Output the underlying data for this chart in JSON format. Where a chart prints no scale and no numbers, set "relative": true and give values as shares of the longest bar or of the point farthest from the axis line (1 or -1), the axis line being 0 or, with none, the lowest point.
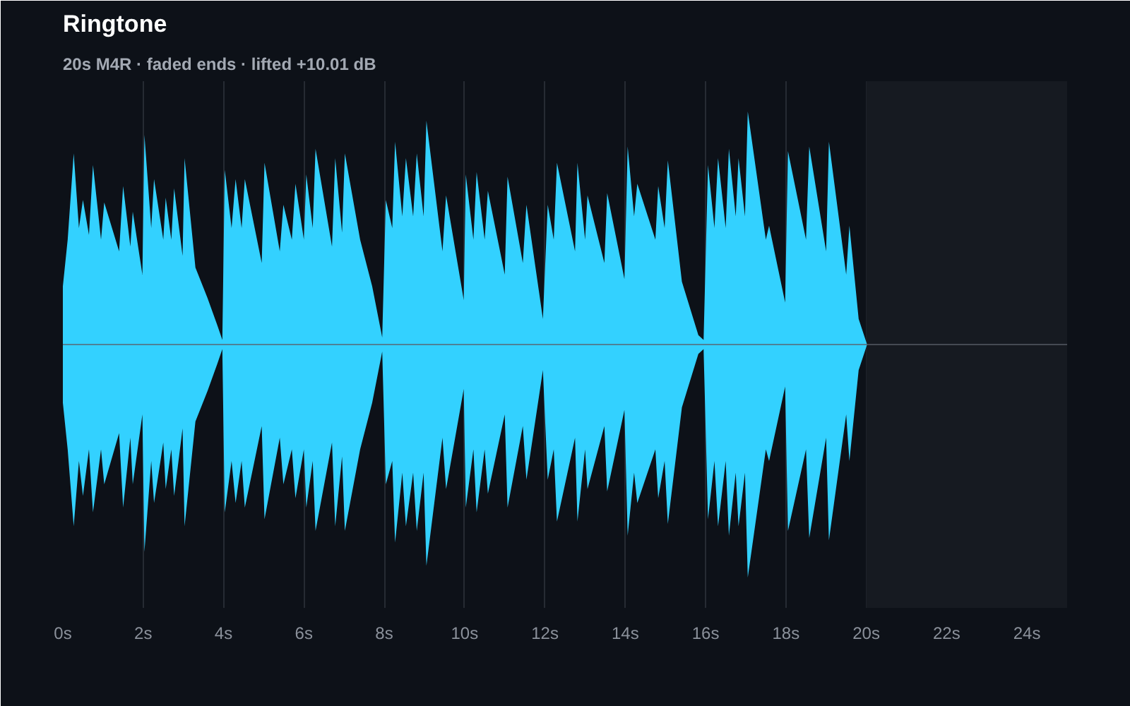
{
  "chart_data": {
    "type": "area",
    "title": "Ringtone",
    "subtitle": "20s M4R · faded ends · lifted +10.01 dB",
    "relative": true,
    "x": [
      0,
      0.12,
      0.27,
      0.4,
      0.5,
      0.65,
      0.75,
      0.95,
      1.03,
      1.4,
      1.5,
      1.68,
      1.74,
      1.98,
      2.03,
      2.2,
      2.27,
      2.5,
      2.56,
      2.7,
      2.77,
      2.98,
      3.03,
      3.3,
      3.6,
      3.85,
      3.97,
      4.03,
      4.2,
      4.3,
      4.45,
      4.53,
      4.95,
      5.02,
      5.4,
      5.49,
      5.7,
      5.79,
      6.0,
      6.06,
      6.22,
      6.29,
      6.7,
      6.78,
      6.95,
      7.02,
      7.4,
      7.7,
      7.95,
      8.04,
      8.2,
      8.27,
      8.45,
      8.54,
      8.72,
      8.81,
      8.98,
      9.05,
      9.45,
      9.54,
      9.98,
      10.03,
      10.22,
      10.3,
      10.5,
      10.58,
      11.0,
      11.07,
      11.45,
      11.54,
      11.95,
      12.07,
      12.22,
      12.3,
      12.75,
      12.81,
      13.0,
      13.06,
      13.48,
      13.55,
      13.98,
      14.06,
      14.22,
      14.3,
      14.75,
      14.82,
      14.98,
      15.06,
      15.41,
      15.82,
      15.95,
      16.06,
      16.22,
      16.31,
      16.5,
      16.58,
      16.75,
      16.82,
      16.98,
      17.05,
      17.5,
      17.58,
      17.98,
      18.05,
      18.5,
      18.58,
      19.0,
      19.07,
      19.5,
      19.58,
      19.81,
      20.02
    ],
    "series": [
      {
        "color": "#33d1ff",
        "values": [
          0.25,
          0.45,
          0.82,
          0.5,
          0.62,
          0.47,
          0.77,
          0.45,
          0.61,
          0.4,
          0.68,
          0.42,
          0.57,
          0.3,
          0.9,
          0.5,
          0.71,
          0.45,
          0.63,
          0.45,
          0.67,
          0.38,
          0.8,
          0.33,
          0.2,
          0.08,
          0.02,
          0.75,
          0.5,
          0.71,
          0.5,
          0.71,
          0.35,
          0.78,
          0.4,
          0.6,
          0.45,
          0.69,
          0.45,
          0.73,
          0.5,
          0.84,
          0.42,
          0.8,
          0.48,
          0.82,
          0.45,
          0.25,
          0.03,
          0.62,
          0.5,
          0.87,
          0.55,
          0.8,
          0.55,
          0.82,
          0.55,
          0.96,
          0.4,
          0.64,
          0.19,
          0.73,
          0.45,
          0.74,
          0.45,
          0.66,
          0.3,
          0.72,
          0.35,
          0.6,
          0.11,
          0.6,
          0.45,
          0.78,
          0.4,
          0.78,
          0.45,
          0.64,
          0.35,
          0.65,
          0.28,
          0.85,
          0.55,
          0.69,
          0.45,
          0.68,
          0.5,
          0.79,
          0.27,
          0.04,
          0.02,
          0.77,
          0.5,
          0.8,
          0.5,
          0.84,
          0.55,
          0.8,
          0.55,
          1.0,
          0.45,
          0.51,
          0.18,
          0.83,
          0.45,
          0.85,
          0.4,
          0.87,
          0.3,
          0.51,
          0.11,
          0
        ]
      },
      {
        "color": "#33d1ff",
        "values": [
          -0.25,
          -0.45,
          -0.78,
          -0.5,
          -0.65,
          -0.45,
          -0.72,
          -0.45,
          -0.6,
          -0.38,
          -0.7,
          -0.4,
          -0.6,
          -0.3,
          -0.89,
          -0.5,
          -0.68,
          -0.42,
          -0.62,
          -0.45,
          -0.65,
          -0.36,
          -0.78,
          -0.33,
          -0.2,
          -0.08,
          -0.02,
          -0.72,
          -0.5,
          -0.68,
          -0.5,
          -0.7,
          -0.35,
          -0.75,
          -0.4,
          -0.6,
          -0.45,
          -0.66,
          -0.45,
          -0.7,
          -0.5,
          -0.8,
          -0.42,
          -0.78,
          -0.48,
          -0.8,
          -0.45,
          -0.25,
          -0.03,
          -0.6,
          -0.5,
          -0.85,
          -0.55,
          -0.78,
          -0.55,
          -0.8,
          -0.55,
          -0.95,
          -0.4,
          -0.62,
          -0.19,
          -0.7,
          -0.45,
          -0.72,
          -0.45,
          -0.64,
          -0.3,
          -0.7,
          -0.35,
          -0.58,
          -0.11,
          -0.58,
          -0.45,
          -0.76,
          -0.4,
          -0.76,
          -0.45,
          -0.62,
          -0.35,
          -0.63,
          -0.28,
          -0.82,
          -0.55,
          -0.68,
          -0.45,
          -0.66,
          -0.5,
          -0.77,
          -0.27,
          -0.04,
          -0.02,
          -0.75,
          -0.5,
          -0.78,
          -0.5,
          -0.82,
          -0.55,
          -0.78,
          -0.55,
          -1.0,
          -0.45,
          -0.5,
          -0.18,
          -0.8,
          -0.45,
          -0.83,
          -0.4,
          -0.84,
          -0.3,
          -0.5,
          -0.11,
          0
        ]
      }
    ],
    "xlim": [
      0,
      25
    ],
    "xticks": [
      {
        "value": 0,
        "label": "0s"
      },
      {
        "value": 2,
        "label": "2s"
      },
      {
        "value": 4,
        "label": "4s"
      },
      {
        "value": 6,
        "label": "6s"
      },
      {
        "value": 8,
        "label": "8s"
      },
      {
        "value": 10,
        "label": "10s"
      },
      {
        "value": 12,
        "label": "12s"
      },
      {
        "value": 14,
        "label": "14s"
      },
      {
        "value": 16,
        "label": "16s"
      },
      {
        "value": 18,
        "label": "18s"
      },
      {
        "value": 20,
        "label": "20s"
      },
      {
        "value": 22,
        "label": "22s"
      },
      {
        "value": 24,
        "label": "24s"
      }
    ],
    "bands": [
      {
        "axis": "x",
        "from": 20,
        "to": 25,
        "color": "#161a21"
      }
    ],
    "grid": "x"
  }
}
